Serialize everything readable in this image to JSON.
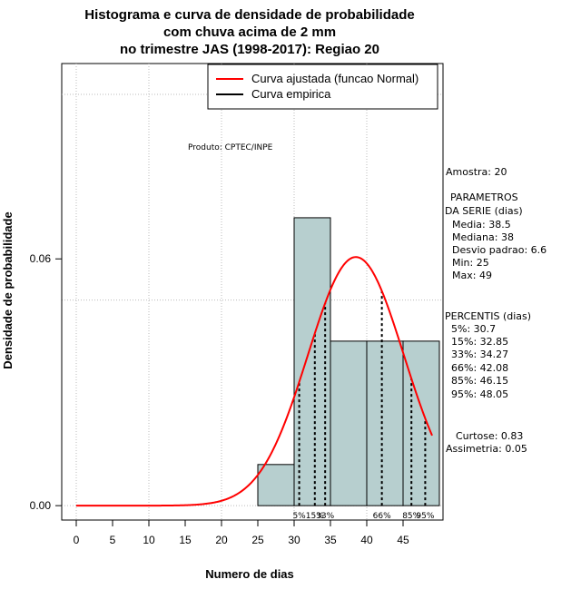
{
  "chart_data": {
    "type": "bar",
    "title": [
      "Histograma e curva de densidade de probabilidade",
      "com chuva acima de 2 mm",
      "no trimestre JAS (1998-2017): Regiao 20"
    ],
    "xlabel": "Numero de dias",
    "ylabel": "Densidade de probabilidade",
    "xlim": [
      -2,
      50.5
    ],
    "ylim": [
      -0.0035,
      0.1075
    ],
    "x_ticks": [
      0,
      5,
      10,
      15,
      20,
      25,
      30,
      35,
      40,
      45
    ],
    "y_ticks": [
      0.0,
      0.06
    ],
    "y_tick_labels": [
      "0.00",
      "0.06"
    ],
    "x_grid": [
      0,
      10,
      20,
      30,
      40
    ],
    "y_grid": [
      0.0,
      0.05,
      0.1
    ],
    "bins": [
      {
        "x0": 25,
        "x1": 30,
        "density": 0.01
      },
      {
        "x0": 30,
        "x1": 35,
        "density": 0.07
      },
      {
        "x0": 35,
        "x1": 40,
        "density": 0.04
      },
      {
        "x0": 40,
        "x1": 45,
        "density": 0.04
      },
      {
        "x0": 45,
        "x1": 50,
        "density": 0.04
      }
    ],
    "normal_curve": {
      "mean": 38.5,
      "sd": 6.6,
      "x_from": 0,
      "x_to": 49
    },
    "percentiles": [
      {
        "label": "5%",
        "value": 30.7
      },
      {
        "label": "15%",
        "value": 32.85
      },
      {
        "label": "33%",
        "value": 34.27
      },
      {
        "label": "66%",
        "value": 42.08
      },
      {
        "label": "85%",
        "value": 46.15
      },
      {
        "label": "95%",
        "value": 48.05
      }
    ],
    "legend": [
      {
        "label": "Curva ajustada (funcao Normal)",
        "color": "#ff0000"
      },
      {
        "label": "Curva empirica",
        "color": "#000000"
      }
    ],
    "legend_position": "top-right"
  },
  "product_label": "Produto: CPTEC/INPE",
  "side_panel": {
    "sample": "Amostra: 20",
    "params_header_1": "PARAMETROS",
    "params_header_2": "DA SERIE (dias)",
    "params": [
      "Media: 38.5",
      "Mediana: 38",
      "Desvio padrao: 6.6",
      "Min: 25",
      "Max: 49"
    ],
    "pct_header": "PERCENTIS (dias)",
    "pct_lines": [
      "5%: 30.7",
      "15%: 32.85",
      "33%: 34.27",
      "66%: 42.08",
      "85%: 46.15",
      "95%: 48.05"
    ],
    "kurtosis": "Curtose: 0.83",
    "skewness": "Assimetria: 0.05"
  },
  "colors": {
    "bar_fill": "#b7cfcf",
    "curve": "#ff0000",
    "grid": "#bbbbbb"
  }
}
